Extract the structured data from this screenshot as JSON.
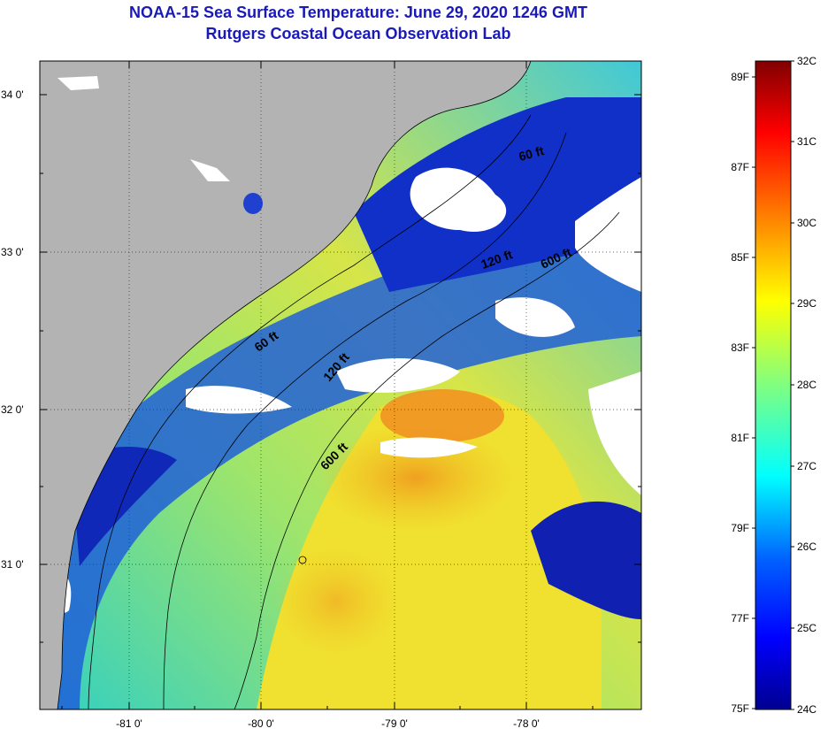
{
  "title": {
    "line1": "NOAA-15 Sea Surface Temperature:  June 29, 2020 1246 GMT",
    "line2": "Rutgers Coastal Ocean Observation Lab"
  },
  "colors": {
    "title": "#1a1ab8",
    "land": "#b3b3b3",
    "cloud": "#ffffff",
    "frame": "#000000"
  },
  "map": {
    "lat_labels": [
      "34 0'",
      "33 0'",
      "32 0'",
      "31 0'"
    ],
    "lon_labels": [
      "-81 0'",
      "-80 0'",
      "-79 0'",
      "-78 0'"
    ],
    "contours": [
      {
        "label": "60 ft"
      },
      {
        "label": "120 ft"
      },
      {
        "label": "600 ft"
      },
      {
        "label": "60 ft"
      },
      {
        "label": "120 ft"
      },
      {
        "label": "600 ft"
      }
    ]
  },
  "colorbar": {
    "fahrenheit": [
      "89F",
      "87F",
      "85F",
      "83F",
      "81F",
      "79F",
      "77F",
      "75F"
    ],
    "celsius": [
      "32C",
      "31C",
      "30C",
      "29C",
      "28C",
      "27C",
      "26C",
      "25C",
      "24C"
    ],
    "range_c": [
      24,
      32
    ]
  }
}
